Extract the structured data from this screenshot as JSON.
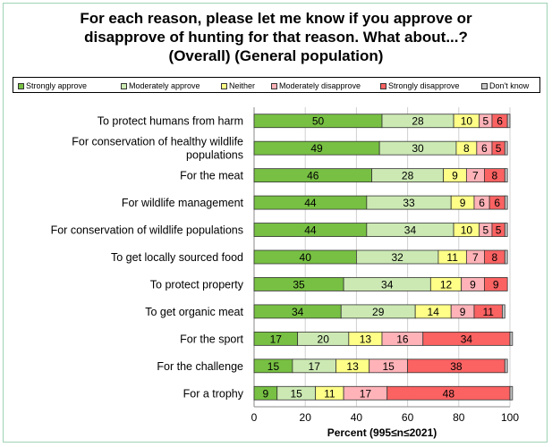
{
  "title_lines": [
    "For each reason, please let me know if you approve or",
    "disapprove of hunting for that reason. What about...?",
    "(Overall) (General population)"
  ],
  "colors": {
    "Strongly approve": "#77c043",
    "Moderately approve": "#cce9b3",
    "Neither": "#ffff88",
    "Moderately disapprove": "#ffb3b8",
    "Strongly disapprove": "#fb6262",
    "Don't know": "#c8c8c8"
  },
  "chart_data": {
    "type": "bar",
    "orientation": "horizontal",
    "stacked": true,
    "title": "For each reason, please let me know if you approve or disapprove of hunting for that reason. What about...? (Overall) (General population)",
    "xlabel": "Percent (995≤n≤2021)",
    "ylabel": "",
    "xlim": [
      0,
      100
    ],
    "xticks": [
      0,
      20,
      40,
      60,
      80,
      100
    ],
    "grid": true,
    "legend_position": "top",
    "categories": [
      "To protect humans from harm",
      "For conservation of healthy wildlife populations",
      "For the meat",
      "For wildlife management",
      "For conservation of wildlife populations",
      "To get locally sourced food",
      "To protect property",
      "To get organic meat",
      "For the sport",
      "For the challenge",
      "For a trophy"
    ],
    "category_lines": [
      [
        "To protect humans from harm"
      ],
      [
        "For conservation of healthy wildlife",
        "populations"
      ],
      [
        "For the meat"
      ],
      [
        "For wildlife management"
      ],
      [
        "For conservation of wildlife populations"
      ],
      [
        "To get locally sourced food"
      ],
      [
        "To protect property"
      ],
      [
        "To get organic meat"
      ],
      [
        "For the sport"
      ],
      [
        "For the challenge"
      ],
      [
        "For a trophy"
      ]
    ],
    "series": [
      {
        "name": "Strongly approve",
        "values": [
          50,
          49,
          46,
          44,
          44,
          40,
          35,
          34,
          17,
          15,
          9
        ]
      },
      {
        "name": "Moderately approve",
        "values": [
          28,
          30,
          28,
          33,
          34,
          32,
          34,
          29,
          20,
          17,
          15
        ]
      },
      {
        "name": "Neither",
        "values": [
          10,
          8,
          9,
          9,
          10,
          11,
          12,
          14,
          13,
          13,
          11
        ]
      },
      {
        "name": "Moderately disapprove",
        "values": [
          5,
          6,
          7,
          6,
          5,
          7,
          9,
          9,
          16,
          15,
          17
        ]
      },
      {
        "name": "Strongly disapprove",
        "values": [
          6,
          5,
          8,
          6,
          5,
          8,
          9,
          11,
          34,
          38,
          48
        ]
      },
      {
        "name": "Don't know",
        "values": [
          1,
          1,
          1,
          1,
          1,
          1,
          0,
          1,
          1,
          1,
          1
        ]
      }
    ],
    "hidden_labels": [
      "Don't know"
    ]
  }
}
